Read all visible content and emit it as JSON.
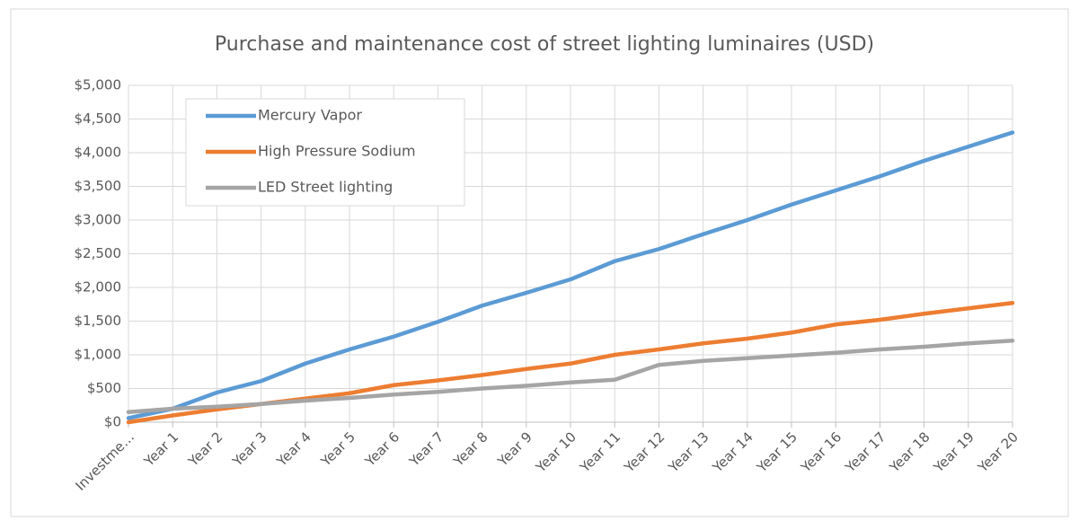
{
  "chart_data": {
    "type": "line",
    "title": "Purchase and maintenance cost of street lighting luminaires (USD)",
    "categories": [
      "Investme…",
      "Year 1",
      "Year 2",
      "Year 3",
      "Year 4",
      "Year 5",
      "Year 6",
      "Year 7",
      "Year 8",
      "Year 9",
      "Year 10",
      "Year 11",
      "Year 12",
      "Year 13",
      "Year 14",
      "Year 15",
      "Year 16",
      "Year 17",
      "Year 18",
      "Year 19",
      "Year 20"
    ],
    "series": [
      {
        "name": "Mercury Vapor",
        "color": "#5b9bd5",
        "values": [
          60,
          200,
          440,
          610,
          870,
          1080,
          1270,
          1490,
          1730,
          1920,
          2120,
          2390,
          2570,
          2790,
          3000,
          3230,
          3440,
          3650,
          3880,
          4090,
          4300
        ]
      },
      {
        "name": "High Pressure Sodium",
        "color": "#ed7d31",
        "values": [
          0,
          100,
          190,
          270,
          350,
          430,
          550,
          620,
          700,
          790,
          870,
          1000,
          1080,
          1170,
          1240,
          1330,
          1450,
          1520,
          1610,
          1690,
          1770
        ]
      },
      {
        "name": "LED Street lighting",
        "color": "#a5a5a5",
        "values": [
          150,
          200,
          230,
          270,
          320,
          360,
          410,
          450,
          500,
          540,
          590,
          630,
          850,
          910,
          950,
          990,
          1030,
          1080,
          1120,
          1170,
          1210
        ]
      }
    ],
    "ylim": [
      0,
      5000
    ],
    "yticks": [
      {
        "value": 0,
        "label": "$0"
      },
      {
        "value": 500,
        "label": "$500"
      },
      {
        "value": 1000,
        "label": "$1,000"
      },
      {
        "value": 1500,
        "label": "$1,500"
      },
      {
        "value": 2000,
        "label": "$2,000"
      },
      {
        "value": 2500,
        "label": "$2,500"
      },
      {
        "value": 3000,
        "label": "$3,000"
      },
      {
        "value": 3500,
        "label": "$3,500"
      },
      {
        "value": 4000,
        "label": "$4,000"
      },
      {
        "value": 4500,
        "label": "$4,500"
      },
      {
        "value": 5000,
        "label": "$5,000"
      }
    ],
    "grid": true,
    "legend": "top-left"
  }
}
